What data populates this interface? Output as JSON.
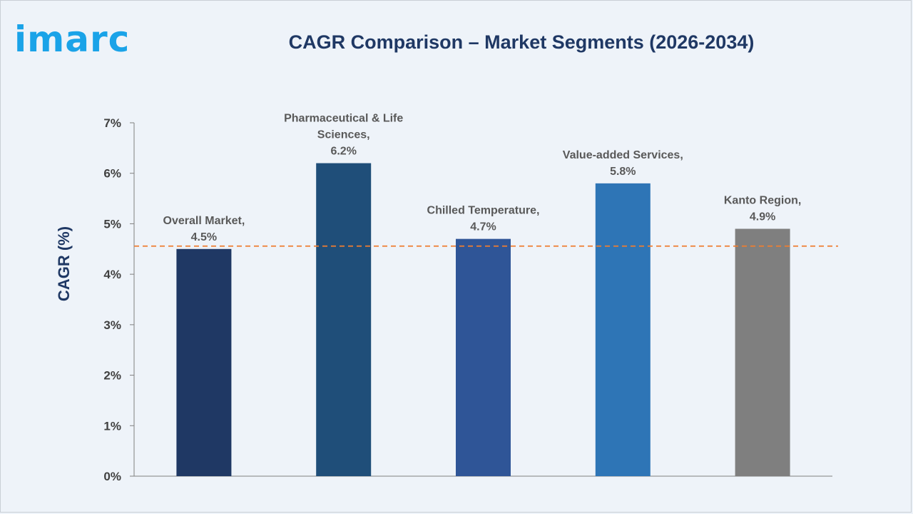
{
  "brand": {
    "logo_text": "imarc"
  },
  "colors": {
    "background": "#eef3f9",
    "title": "#1f3864",
    "logo": "#1aa3e8",
    "axis": "#808080",
    "reference_line": "#ed7d31"
  },
  "chart_data": {
    "type": "bar",
    "title": "CAGR Comparison – Market Segments (2026-2034)",
    "xlabel": "",
    "ylabel": "CAGR (%)",
    "ylim": [
      0,
      7
    ],
    "yticks": [
      "0%",
      "1%",
      "2%",
      "3%",
      "4%",
      "5%",
      "6%",
      "7%"
    ],
    "grid": false,
    "legend": "none",
    "categories": [
      "Overall Market",
      "Pharmaceutical & Life Sciences",
      "Chilled Temperature",
      "Value-added Services",
      "Kanto Region"
    ],
    "values": [
      4.5,
      6.2,
      4.7,
      5.8,
      4.9
    ],
    "data_labels": [
      [
        "Overall Market,",
        "4.5%"
      ],
      [
        "Pharmaceutical & Life",
        "Sciences,",
        "6.2%"
      ],
      [
        "Chilled Temperature,",
        "4.7%"
      ],
      [
        "Value-added Services,",
        "5.8%"
      ],
      [
        "Kanto Region,",
        "4.9%"
      ]
    ],
    "bar_colors": [
      "#1f3864",
      "#1f4e79",
      "#2f5597",
      "#2e75b6",
      "#7f7f7f"
    ],
    "reference_line": {
      "value": 4.5,
      "style": "dashed"
    }
  }
}
